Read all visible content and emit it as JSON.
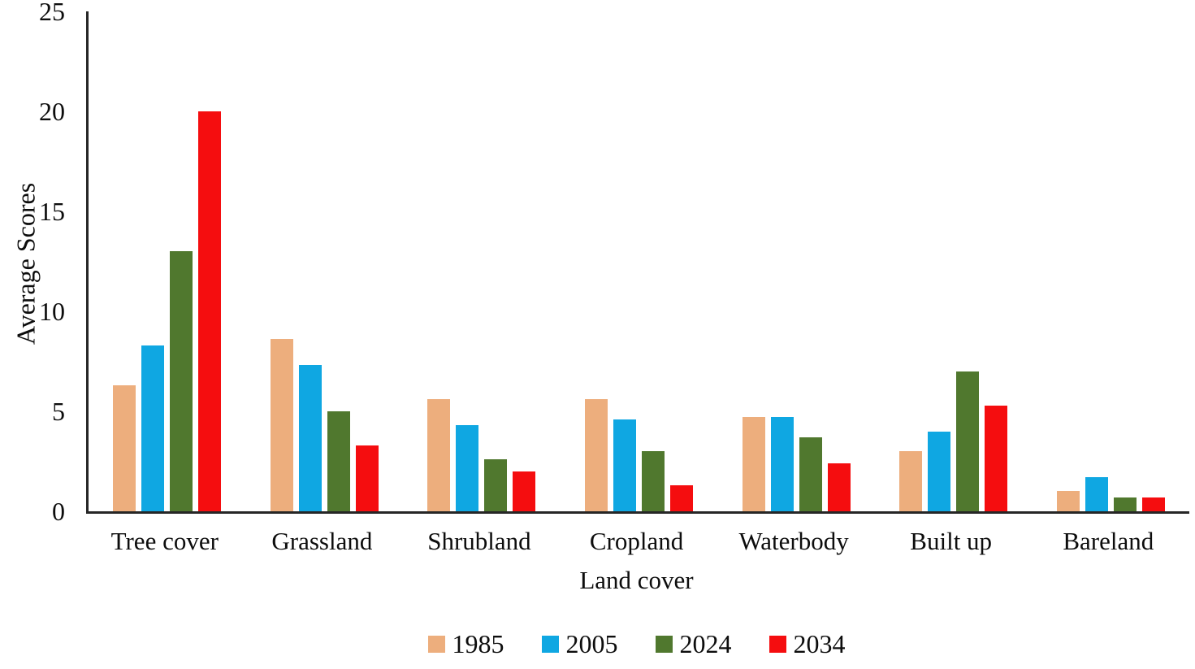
{
  "chart_data": {
    "type": "bar",
    "title": "",
    "xlabel": "Land cover",
    "ylabel": "Average Scores",
    "ylim": [
      0,
      25
    ],
    "yticks": [
      0,
      5,
      10,
      15,
      20,
      25
    ],
    "grid": false,
    "legend_position": "bottom",
    "categories": [
      "Tree cover",
      "Grassland",
      "Shrubland",
      "Cropland",
      "Waterbody",
      "Built up",
      "Bareland"
    ],
    "series": [
      {
        "name": "1985",
        "color": "#EDAE7D",
        "values": [
          6.3,
          8.6,
          5.6,
          5.6,
          4.7,
          3.0,
          1.0
        ]
      },
      {
        "name": "2005",
        "color": "#0FA7E2",
        "values": [
          8.3,
          7.3,
          4.3,
          4.6,
          4.7,
          4.0,
          1.7
        ]
      },
      {
        "name": "2024",
        "color": "#50782E",
        "values": [
          13.0,
          5.0,
          2.6,
          3.0,
          3.7,
          7.0,
          0.7
        ]
      },
      {
        "name": "2034",
        "color": "#F50D0F",
        "values": [
          20.0,
          3.3,
          2.0,
          1.3,
          2.4,
          5.3,
          0.7
        ]
      }
    ],
    "axis_color": "#262626",
    "text_color": "#0d0d0d"
  }
}
